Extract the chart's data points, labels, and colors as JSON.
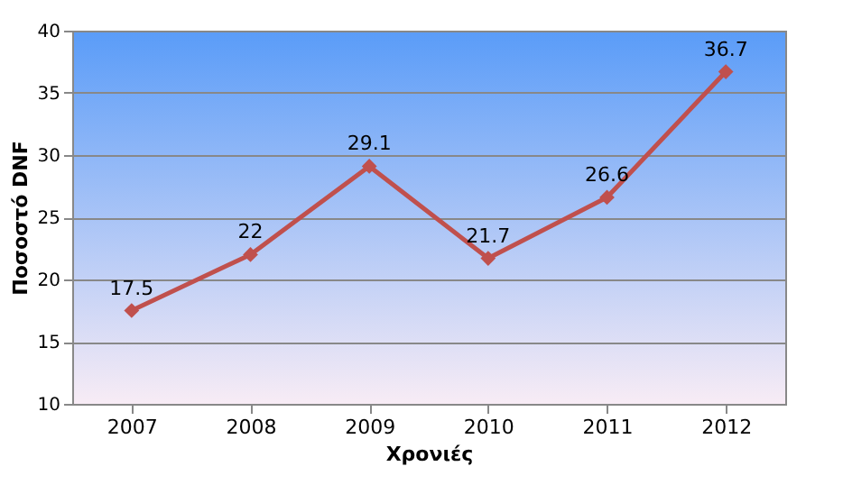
{
  "chart_data": {
    "type": "line",
    "xlabel": "Χρονιές",
    "ylabel": "Ποσοστό DNF",
    "categories": [
      "2007",
      "2008",
      "2009",
      "2010",
      "2011",
      "2012"
    ],
    "values": [
      17.5,
      22,
      29.1,
      21.7,
      26.6,
      36.7
    ],
    "color": "#c0504d",
    "ylim": [
      10,
      40
    ],
    "yticks": [
      10,
      15,
      20,
      25,
      30,
      35,
      40
    ],
    "grid": "y",
    "marker": "diamond",
    "data_labels": true
  }
}
